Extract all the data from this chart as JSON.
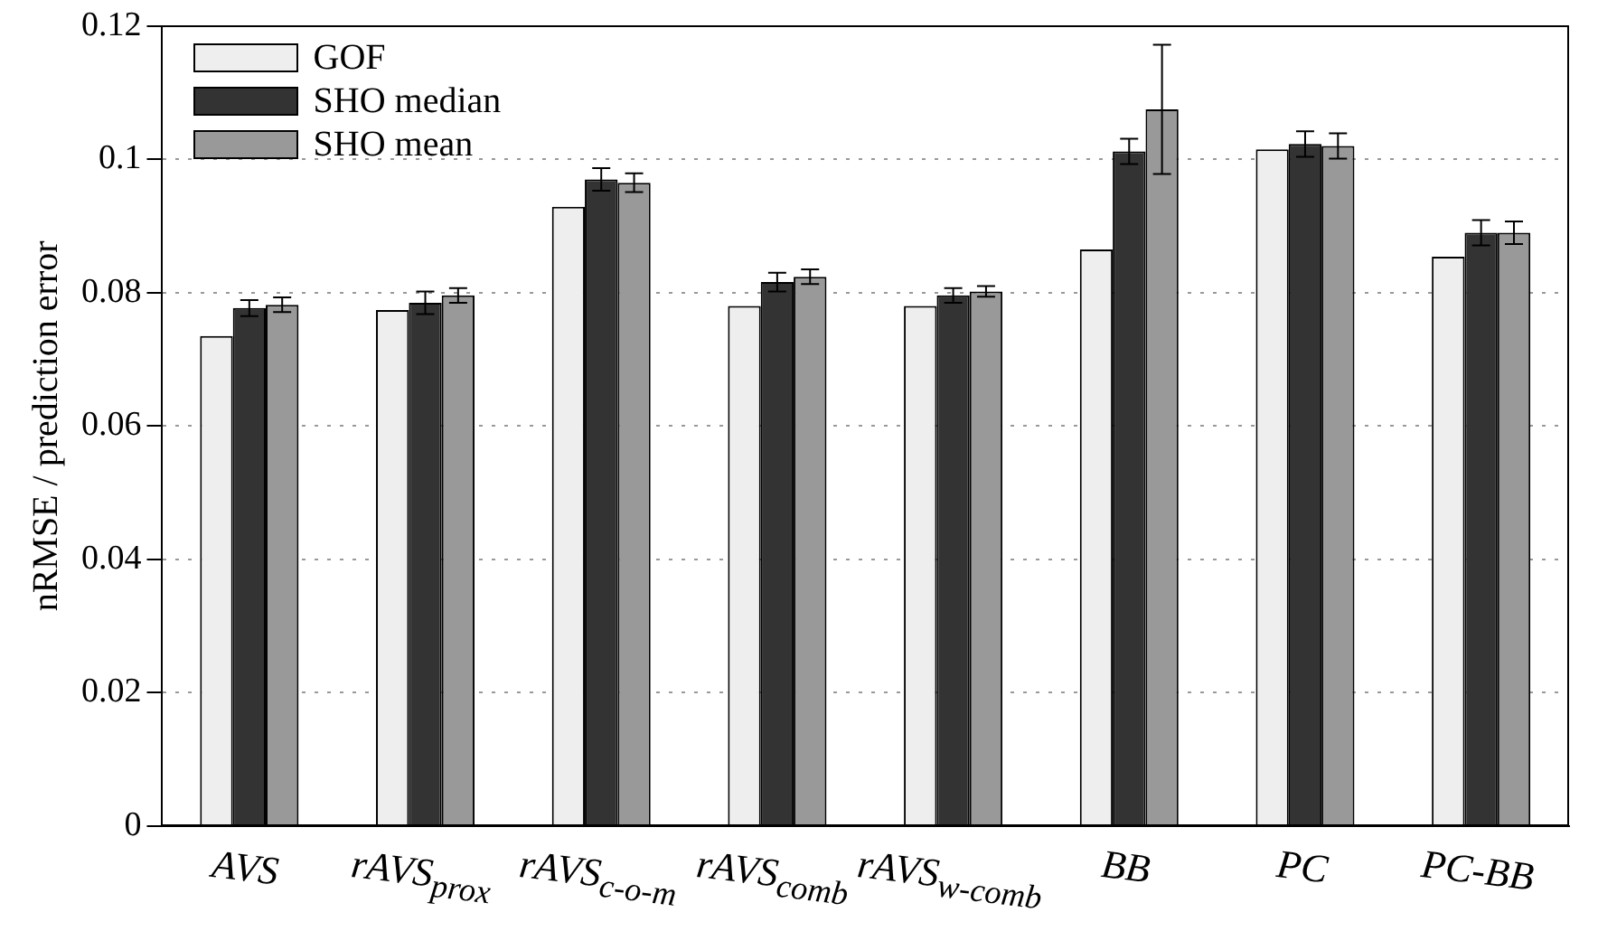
{
  "chart_data": {
    "type": "bar",
    "ylabel": "nRMSE / prediction error",
    "categories": [
      "AVS",
      "rAVS$_{prox}$",
      "rAVS$_{c-o-m}$",
      "rAVS$_{comb}$",
      "rAVS$_{w-comb}$",
      "BB",
      "PC",
      "PC-BB"
    ],
    "series": [
      {
        "name": "GOF",
        "color": "#eeeeee",
        "values": [
          0.0735,
          0.0774,
          0.0929,
          0.078,
          0.078,
          0.0865,
          0.1015,
          0.0854
        ]
      },
      {
        "name": "SHO median",
        "color": "#333333",
        "values": [
          0.0777,
          0.0785,
          0.097,
          0.0816,
          0.0796,
          0.1012,
          0.1023,
          0.089
        ],
        "errors": [
          0.0012,
          0.0017,
          0.0017,
          0.0014,
          0.0011,
          0.0019,
          0.0019,
          0.0019
        ]
      },
      {
        "name": "SHO mean",
        "color": "#999999",
        "values": [
          0.0782,
          0.0796,
          0.0965,
          0.0824,
          0.0802,
          0.1075,
          0.102,
          0.089
        ],
        "errors": [
          0.0011,
          0.0011,
          0.0014,
          0.0011,
          0.0008,
          0.0097,
          0.0019,
          0.0017
        ]
      }
    ],
    "ylim": [
      0,
      0.12
    ],
    "yticks": [
      0,
      0.02,
      0.04,
      0.06,
      0.08,
      0.1,
      0.12
    ],
    "grid": "y",
    "legend": "top left"
  }
}
